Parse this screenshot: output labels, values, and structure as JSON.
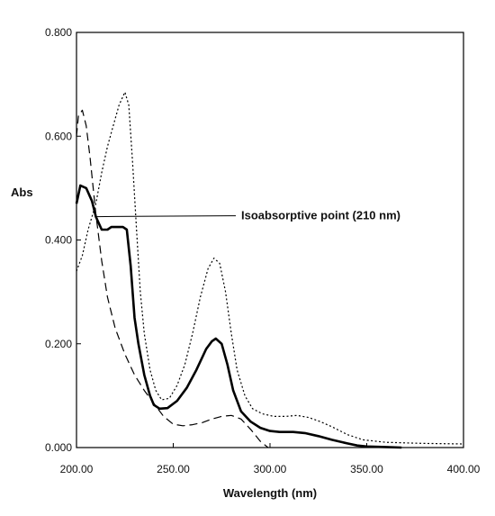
{
  "chart_data": {
    "type": "line",
    "title": "",
    "xlabel": "Wavelength (nm)",
    "ylabel": "Abs",
    "xlim": [
      200,
      400
    ],
    "ylim": [
      0,
      0.8
    ],
    "x_ticks": [
      "200.00",
      "250.00",
      "300.00",
      "350.00",
      "400.00"
    ],
    "y_ticks": [
      "0.000",
      "0.200",
      "0.400",
      "0.600",
      "0.800"
    ],
    "grid": false,
    "legend": "none",
    "annotations": [
      {
        "text": "Isoabsorptive point (210 nm)",
        "x": 210,
        "y": 0.445
      }
    ],
    "series": [
      {
        "style": "solid-thick",
        "color": "#000000",
        "points": [
          [
            200,
            0.47
          ],
          [
            202,
            0.505
          ],
          [
            205,
            0.5
          ],
          [
            208,
            0.475
          ],
          [
            210,
            0.445
          ],
          [
            213,
            0.42
          ],
          [
            216,
            0.42
          ],
          [
            218,
            0.425
          ],
          [
            220,
            0.425
          ],
          [
            224,
            0.425
          ],
          [
            226,
            0.42
          ],
          [
            228,
            0.35
          ],
          [
            230,
            0.25
          ],
          [
            232,
            0.2
          ],
          [
            235,
            0.14
          ],
          [
            238,
            0.1
          ],
          [
            240,
            0.082
          ],
          [
            243,
            0.075
          ],
          [
            247,
            0.076
          ],
          [
            252,
            0.09
          ],
          [
            257,
            0.115
          ],
          [
            262,
            0.15
          ],
          [
            267,
            0.19
          ],
          [
            270,
            0.205
          ],
          [
            272,
            0.21
          ],
          [
            275,
            0.2
          ],
          [
            278,
            0.16
          ],
          [
            281,
            0.11
          ],
          [
            285,
            0.07
          ],
          [
            290,
            0.05
          ],
          [
            295,
            0.038
          ],
          [
            300,
            0.032
          ],
          [
            305,
            0.03
          ],
          [
            312,
            0.03
          ],
          [
            318,
            0.028
          ],
          [
            325,
            0.022
          ],
          [
            332,
            0.015
          ],
          [
            340,
            0.008
          ],
          [
            345,
            0.004
          ],
          [
            350,
            0.002
          ],
          [
            360,
            0.001
          ],
          [
            368,
            0.0
          ]
        ]
      },
      {
        "style": "dashed",
        "color": "#000000",
        "points": [
          [
            200,
            0.6
          ],
          [
            201,
            0.64
          ],
          [
            203,
            0.65
          ],
          [
            205,
            0.62
          ],
          [
            207,
            0.56
          ],
          [
            210,
            0.45
          ],
          [
            213,
            0.36
          ],
          [
            216,
            0.29
          ],
          [
            220,
            0.23
          ],
          [
            225,
            0.18
          ],
          [
            230,
            0.14
          ],
          [
            235,
            0.11
          ],
          [
            240,
            0.085
          ],
          [
            245,
            0.06
          ],
          [
            250,
            0.045
          ],
          [
            255,
            0.042
          ],
          [
            260,
            0.044
          ],
          [
            265,
            0.048
          ],
          [
            270,
            0.055
          ],
          [
            275,
            0.06
          ],
          [
            280,
            0.062
          ],
          [
            285,
            0.055
          ],
          [
            290,
            0.035
          ],
          [
            295,
            0.012
          ],
          [
            299,
            0.0
          ]
        ]
      },
      {
        "style": "dotted",
        "color": "#000000",
        "points": [
          [
            200,
            0.34
          ],
          [
            203,
            0.37
          ],
          [
            206,
            0.42
          ],
          [
            210,
            0.47
          ],
          [
            213,
            0.53
          ],
          [
            216,
            0.58
          ],
          [
            219,
            0.62
          ],
          [
            222,
            0.66
          ],
          [
            225,
            0.685
          ],
          [
            227,
            0.66
          ],
          [
            229,
            0.55
          ],
          [
            231,
            0.42
          ],
          [
            233,
            0.3
          ],
          [
            235,
            0.22
          ],
          [
            238,
            0.15
          ],
          [
            241,
            0.11
          ],
          [
            244,
            0.092
          ],
          [
            248,
            0.095
          ],
          [
            252,
            0.12
          ],
          [
            256,
            0.16
          ],
          [
            260,
            0.22
          ],
          [
            264,
            0.29
          ],
          [
            268,
            0.345
          ],
          [
            271,
            0.365
          ],
          [
            274,
            0.355
          ],
          [
            277,
            0.3
          ],
          [
            280,
            0.22
          ],
          [
            283,
            0.15
          ],
          [
            287,
            0.1
          ],
          [
            291,
            0.075
          ],
          [
            296,
            0.065
          ],
          [
            302,
            0.06
          ],
          [
            308,
            0.06
          ],
          [
            314,
            0.062
          ],
          [
            320,
            0.058
          ],
          [
            326,
            0.05
          ],
          [
            332,
            0.04
          ],
          [
            340,
            0.025
          ],
          [
            348,
            0.015
          ],
          [
            360,
            0.01
          ],
          [
            380,
            0.008
          ],
          [
            400,
            0.007
          ]
        ]
      }
    ]
  }
}
